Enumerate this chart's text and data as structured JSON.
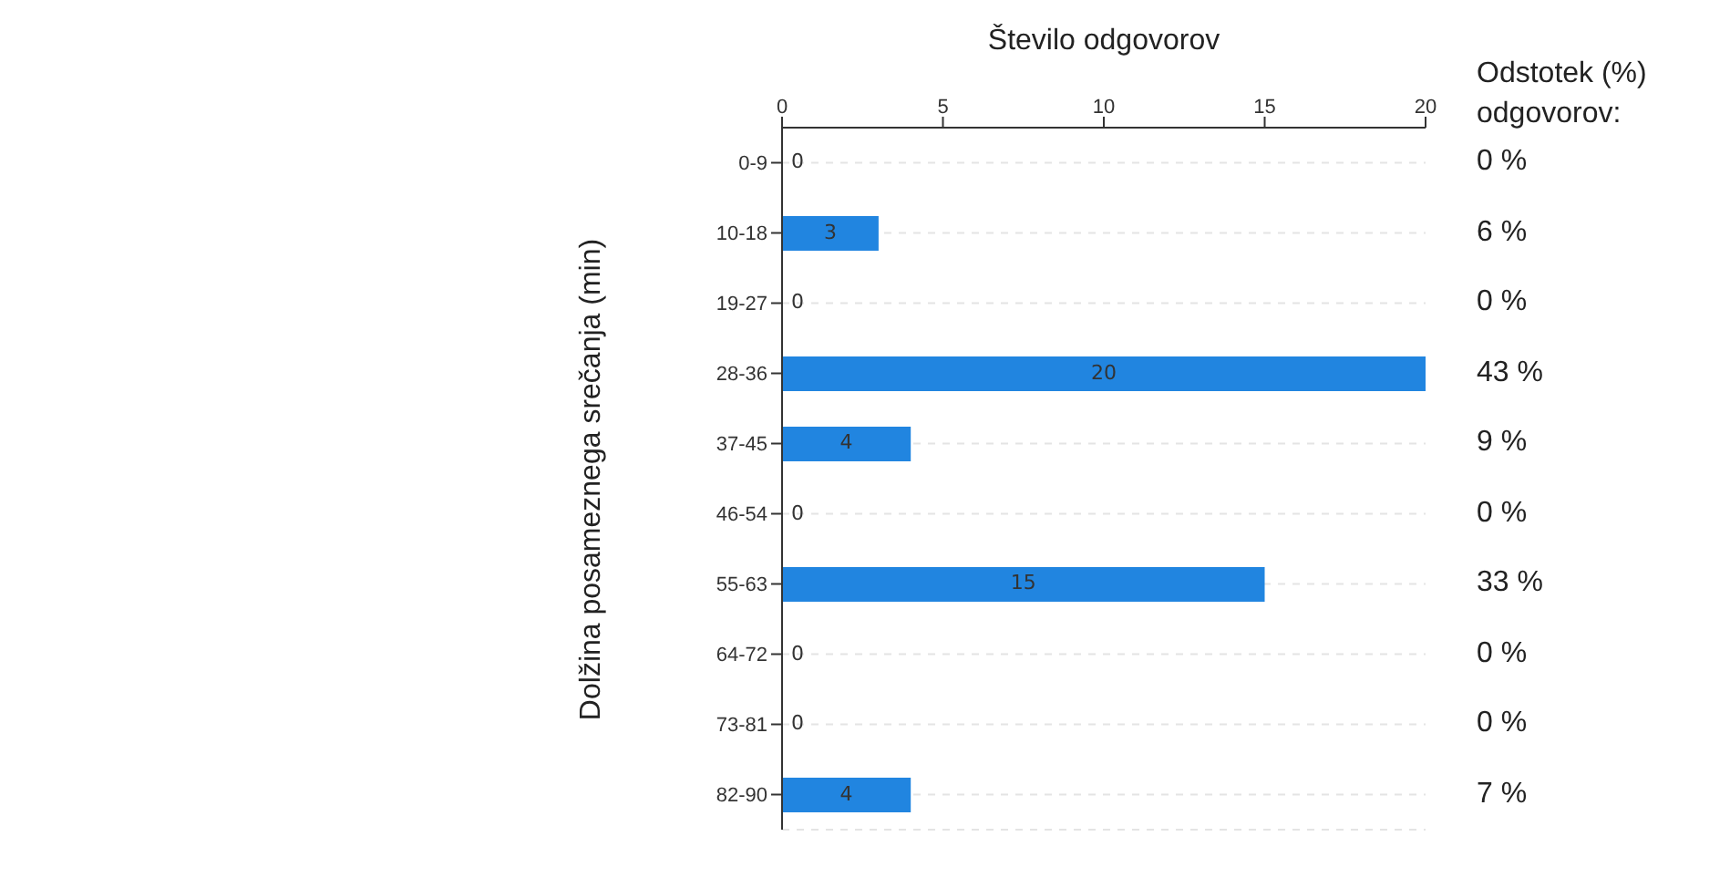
{
  "chart_data": {
    "type": "bar",
    "orientation": "horizontal",
    "xlabel": "Število odgovorov",
    "ylabel": "Dolžina posameznega srečanja (min)",
    "categories": [
      "0-9",
      "10-18",
      "19-27",
      "28-36",
      "37-45",
      "46-54",
      "55-63",
      "64-72",
      "73-81",
      "82-90"
    ],
    "values": [
      0,
      3,
      0,
      20,
      4,
      0,
      15,
      0,
      0,
      4
    ],
    "color": "#2185e0",
    "xlim": [
      0,
      20
    ],
    "xticks": [
      0,
      5,
      10,
      15,
      20
    ],
    "grid": "y",
    "data_labels": true,
    "annotations": [
      "Odstotek (%) odgovorov:",
      "0 %",
      "6 %",
      "0 %",
      "43 %",
      "9 %",
      "0 %",
      "33 %",
      "0 %",
      "0 %",
      "7 %"
    ]
  }
}
